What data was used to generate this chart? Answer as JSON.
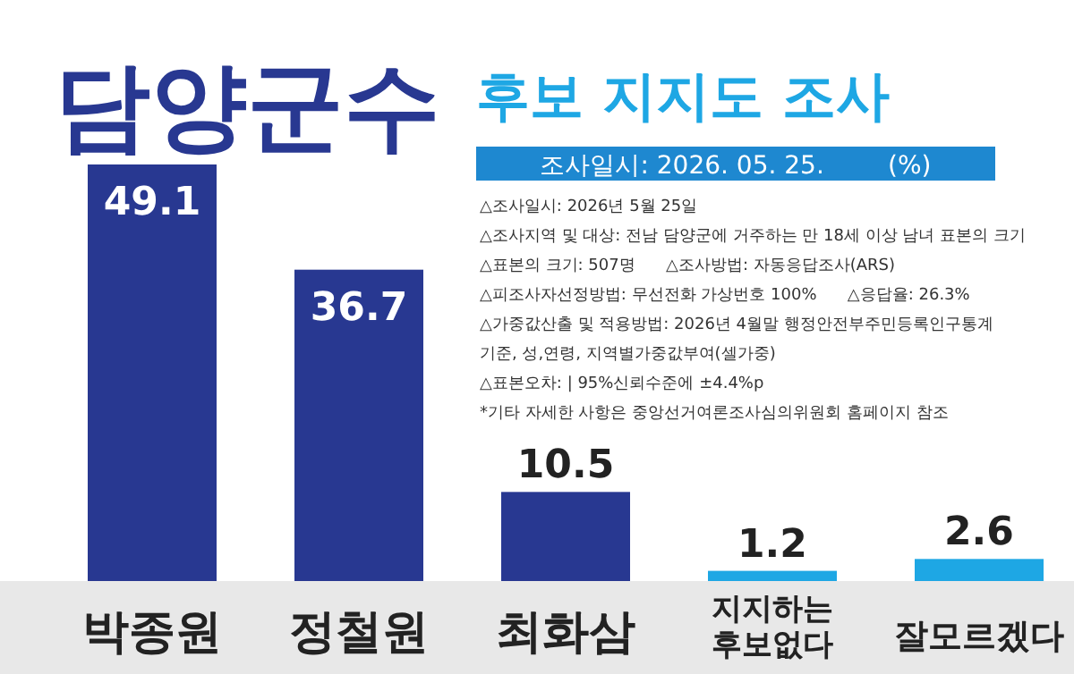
{
  "chart_data": {
    "type": "bar",
    "title": "담양군수",
    "subtitle": "후보 지지도 조사",
    "categories": [
      "박종원",
      "정철원",
      "최화삼",
      "지지하는 후보없다",
      "잘모르겠다"
    ],
    "values": [
      49.1,
      36.7,
      10.5,
      1.2,
      2.6
    ],
    "colors": [
      "#283891",
      "#283891",
      "#283891",
      "#1ea7e4",
      "#1ea7e4"
    ],
    "data_labels": true,
    "annotations": [
      "조사일시: 2026. 05. 25.        (%)",
      "△조사일시: 2026년 5월 25일",
      "△조사지역 및 대상: 전남 담양군에 거주하는 만 18세 이상 남녀 표본의 크기",
      "△표본의 크기: 507명      △조사방법: 자동응답조사(ARS)",
      "△피조사자선정방법: 무선전화 가상번호 100%      △응답율: 26.3%",
      "△가중값산출 및 적용방법: 2026년 4월말 행정안전부주민등록인구통계",
      "기준, 성,연령, 지역별가중값부여(셀가중)",
      "△표본오차: | 95%신뢰수준에 ±4.4%p",
      "*기타 자세한 사항은 중앙선거여론조사심의위원회 홈페이지 참조"
    ]
  }
}
